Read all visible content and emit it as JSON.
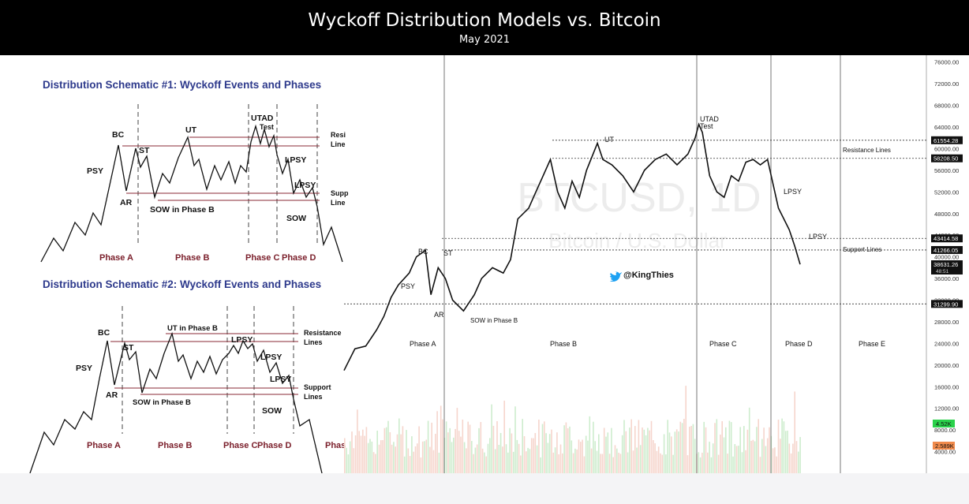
{
  "header": {
    "title": "Wyckoff Distribution Models vs. Bitcoin",
    "subtitle": "May 2021"
  },
  "schematic1": {
    "title": "Distribution Schematic #1: Wyckoff Events and Phases",
    "labels": {
      "psy": "PSY",
      "bc": "BC",
      "st": "ST",
      "ar": "AR",
      "ut": "UT",
      "utad": "UTAD",
      "test": "Test",
      "lpsy1": "LPSY",
      "lpsy2": "LPSY",
      "sow": "SOW",
      "sow_b": "SOW in Phase B",
      "res": "Resi",
      "res2": "Line",
      "sup": "Supp",
      "sup2": "Line"
    },
    "phases": [
      "Phase A",
      "Phase B",
      "Phase C",
      "Phase D"
    ]
  },
  "schematic2": {
    "title": "Distribution Schematic #2: Wyckoff Events and Phases",
    "labels": {
      "psy": "PSY",
      "bc": "BC",
      "st": "ST",
      "ar": "AR",
      "ut": "UT in Phase B",
      "lpsy_top": "LPSY",
      "lpsy1": "LPSY",
      "lpsy2": "LPSY",
      "sow": "SOW",
      "sow_b": "SOW in Phase B",
      "res": "Resistance",
      "res2": "Lines",
      "sup": "Support",
      "sup2": "Lines"
    },
    "phases": [
      "Phase A",
      "Phase B",
      "Phase C",
      "Phase D",
      "Phas"
    ]
  },
  "btc": {
    "watermark1": "BTCUSD, 1D",
    "watermark2": "Bitcoin / U.S. Dollar",
    "twitter": "@KingThies",
    "labels": {
      "psy": "PSY",
      "bc": "BC",
      "st": "ST",
      "ar": "AR",
      "sow_b": "SOW in Phase B",
      "ut": "UT",
      "utad": "UTAD",
      "test": "Test",
      "lpsy1": "LPSY",
      "lpsy2": "LPSY",
      "resistance": "Resistance Lines",
      "support": "Support Lines"
    },
    "phases": [
      "Phase A",
      "Phase B",
      "Phase C",
      "Phase D",
      "Phase E"
    ],
    "price_tags": [
      "61554.28",
      "58208.50",
      "43414.58",
      "41266.05",
      "38631.26",
      "31299.90"
    ],
    "price_tag_time": "48:51",
    "volume_tags": {
      "green": "4.52K",
      "orange": "2.589K"
    }
  },
  "chart_data": {
    "type": "line",
    "title": "BTCUSD, 1D",
    "subtitle": "Bitcoin / U.S. Dollar",
    "ylabel": "",
    "ylim": [
      0,
      78000
    ],
    "y_ticks": [
      4000,
      8000,
      12000,
      16000,
      20000,
      24000,
      28000,
      32000,
      36000,
      40000,
      44000,
      48000,
      52000,
      56000,
      60000,
      64000,
      68000,
      72000,
      76000
    ],
    "series": [
      {
        "name": "",
        "points": [
          [
            0,
            19000
          ],
          [
            6,
            23000
          ],
          [
            12,
            23500
          ],
          [
            18,
            26500
          ],
          [
            22,
            29000
          ],
          [
            26,
            32500
          ],
          [
            30,
            34800
          ],
          [
            36,
            37000
          ],
          [
            40,
            40000
          ],
          [
            45,
            41200
          ],
          [
            48,
            33000
          ],
          [
            52,
            38000
          ],
          [
            56,
            36000
          ],
          [
            60,
            32000
          ],
          [
            66,
            30000
          ],
          [
            72,
            33000
          ],
          [
            76,
            36000
          ],
          [
            82,
            38000
          ],
          [
            88,
            37000
          ],
          [
            92,
            39500
          ],
          [
            96,
            47000
          ],
          [
            102,
            49000
          ],
          [
            106,
            52000
          ],
          [
            110,
            55000
          ],
          [
            114,
            58000
          ],
          [
            118,
            52000
          ],
          [
            122,
            49000
          ],
          [
            126,
            54000
          ],
          [
            130,
            51000
          ],
          [
            134,
            56000
          ],
          [
            140,
            61000
          ],
          [
            143,
            58000
          ],
          [
            148,
            57000
          ],
          [
            154,
            55000
          ],
          [
            160,
            52000
          ],
          [
            166,
            56000
          ],
          [
            172,
            58000
          ],
          [
            178,
            59000
          ],
          [
            184,
            57000
          ],
          [
            190,
            59000
          ],
          [
            194,
            62000
          ],
          [
            196,
            64500
          ],
          [
            198,
            63000
          ],
          [
            202,
            55000
          ],
          [
            206,
            52000
          ],
          [
            210,
            51000
          ],
          [
            214,
            55000
          ],
          [
            218,
            54000
          ],
          [
            222,
            57500
          ],
          [
            226,
            58000
          ],
          [
            230,
            57000
          ],
          [
            234,
            58000
          ],
          [
            238,
            52000
          ],
          [
            240,
            49000
          ],
          [
            243,
            47000
          ],
          [
            246,
            45000
          ],
          [
            249,
            42000
          ],
          [
            252,
            38600
          ]
        ]
      }
    ],
    "x": "days (unlabeled axis)",
    "reference_lines": [
      61554.28,
      58208.5,
      43414.58,
      41266.05,
      31299.9
    ],
    "volume_ticks": [
      "4.52K",
      "2.589K"
    ]
  }
}
